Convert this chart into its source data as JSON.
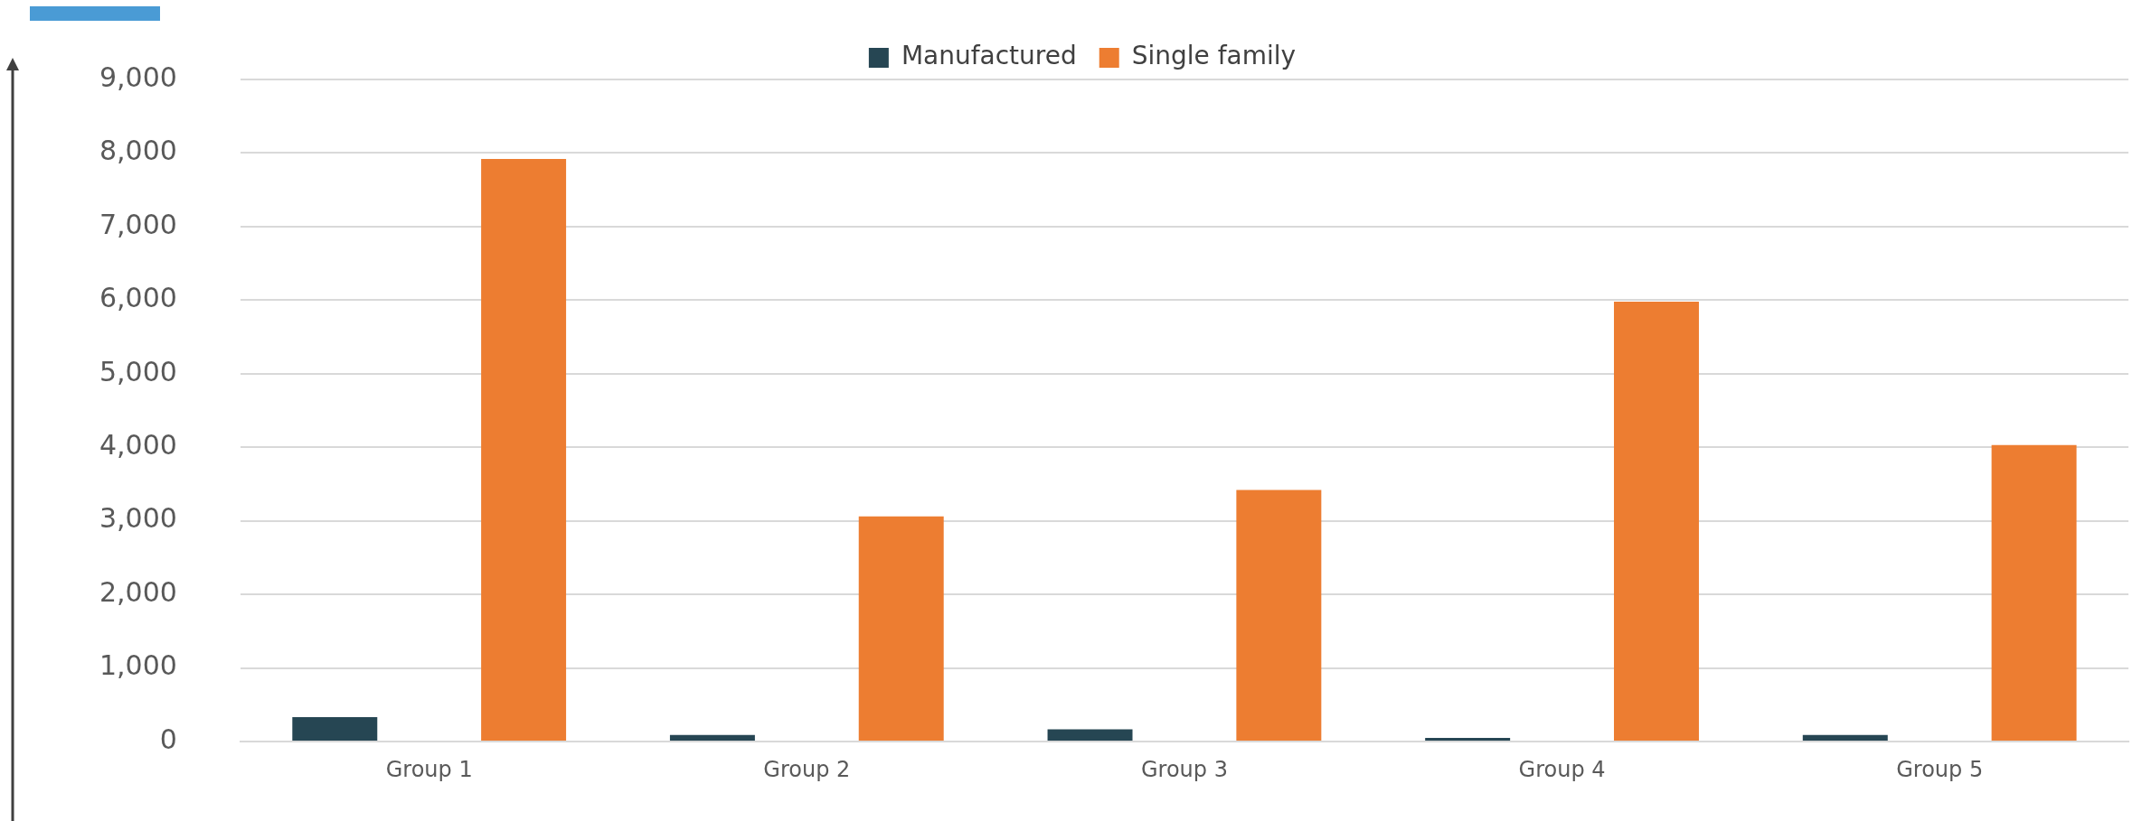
{
  "chart_data": {
    "type": "bar",
    "categories": [
      "Group 1",
      "Group 2",
      "Group 3",
      "Group 4",
      "Group 5"
    ],
    "series": [
      {
        "name": "Manufactured",
        "color": "#264653",
        "values": [
          330,
          90,
          165,
          50,
          90
        ]
      },
      {
        "name": "Single family",
        "color": "#ed7d31",
        "values": [
          7920,
          3060,
          3420,
          5980,
          4030
        ]
      }
    ],
    "ylim": [
      0,
      9000
    ],
    "yticks": [
      {
        "value": 0,
        "label": "0"
      },
      {
        "value": 1000,
        "label": "1,000"
      },
      {
        "value": 2000,
        "label": "2,000"
      },
      {
        "value": 3000,
        "label": "3,000"
      },
      {
        "value": 4000,
        "label": "4,000"
      },
      {
        "value": 5000,
        "label": "5,000"
      },
      {
        "value": 6000,
        "label": "6,000"
      },
      {
        "value": 7000,
        "label": "7,000"
      },
      {
        "value": 8000,
        "label": "8,000"
      },
      {
        "value": 9000,
        "label": "9,000"
      }
    ],
    "grid": "y",
    "legend": "top"
  }
}
